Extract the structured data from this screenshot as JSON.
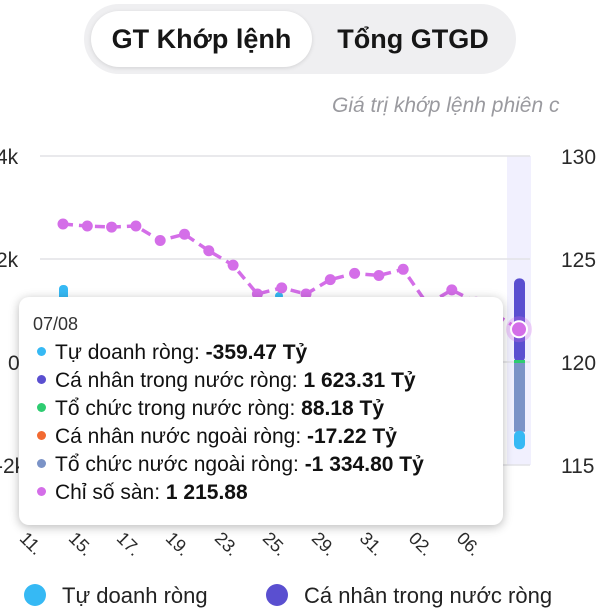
{
  "tabs": [
    {
      "label": "GT Khớp lệnh",
      "active": true
    },
    {
      "label": "Tổng GTGD",
      "active": false
    }
  ],
  "subtitle": "Giá trị khớp lệnh phiên c",
  "colors": {
    "tu_doanh": "#36b9f4",
    "ca_nhan_trong_nuoc": "#5a4fd0",
    "to_chuc_trong_nuoc": "#2ecc71",
    "ca_nhan_nuoc_ngoai": "#f26a32",
    "to_chuc_nuoc_ngoai": "#7b93c7",
    "chi_so_san": "#d46ee8",
    "highlight": "#f1f0fe"
  },
  "chart_data": {
    "type": "line",
    "y_left_ticks": [
      "4k",
      "2k",
      "0",
      "-2k"
    ],
    "y_right_ticks": [
      "130",
      "125",
      "120",
      "115"
    ],
    "y_left_range": [
      -2000,
      4000
    ],
    "y_right_range": [
      1150,
      1300
    ],
    "x_tick_labels": [
      "11.",
      "15.",
      "17.",
      "19.",
      "23.",
      "25.",
      "29.",
      "31.",
      "02.",
      "06."
    ],
    "series": [
      {
        "name": "Chỉ số sàn",
        "axis": "right",
        "values": [
          1267,
          1266,
          1265.5,
          1266,
          1259,
          1262,
          1254,
          1247,
          1233,
          1236,
          1233,
          1240,
          1243,
          1242,
          1245,
          1228,
          1235,
          1229,
          1215.88
        ]
      }
    ],
    "bars": [
      {
        "name": "Tự doanh ròng",
        "values": [
          -359.47
        ]
      },
      {
        "name": "Cá nhân trong nước ròng",
        "values": [
          1623.31
        ]
      },
      {
        "name": "Tổ chức trong nước ròng",
        "values": [
          88.18
        ]
      },
      {
        "name": "Tổ chức nước ngoài ròng",
        "values": [
          -1334.8
        ]
      }
    ]
  },
  "tooltip": {
    "date": "07/08",
    "rows": [
      {
        "label": "Tự doanh ròng: ",
        "value": "-359.47 Tỷ",
        "color": "#36b9f4"
      },
      {
        "label": "Cá nhân trong nước ròng: ",
        "value": "1 623.31 Tỷ",
        "color": "#5a4fd0"
      },
      {
        "label": "Tổ chức trong nước ròng: ",
        "value": "88.18 Tỷ",
        "color": "#2ecc71"
      },
      {
        "label": "Cá nhân nước ngoài ròng: ",
        "value": "-17.22 Tỷ",
        "color": "#f26a32"
      },
      {
        "label": "Tổ chức nước ngoài ròng: ",
        "value": "-1 334.80 Tỷ",
        "color": "#7b93c7"
      },
      {
        "label": "Chỉ số sàn: ",
        "value": "1 215.88",
        "color": "#d46ee8"
      }
    ]
  },
  "legend": [
    {
      "label": "Tự doanh ròng",
      "color": "#36b9f4"
    },
    {
      "label": "Cá nhân trong nước ròng",
      "color": "#5a4fd0"
    }
  ]
}
